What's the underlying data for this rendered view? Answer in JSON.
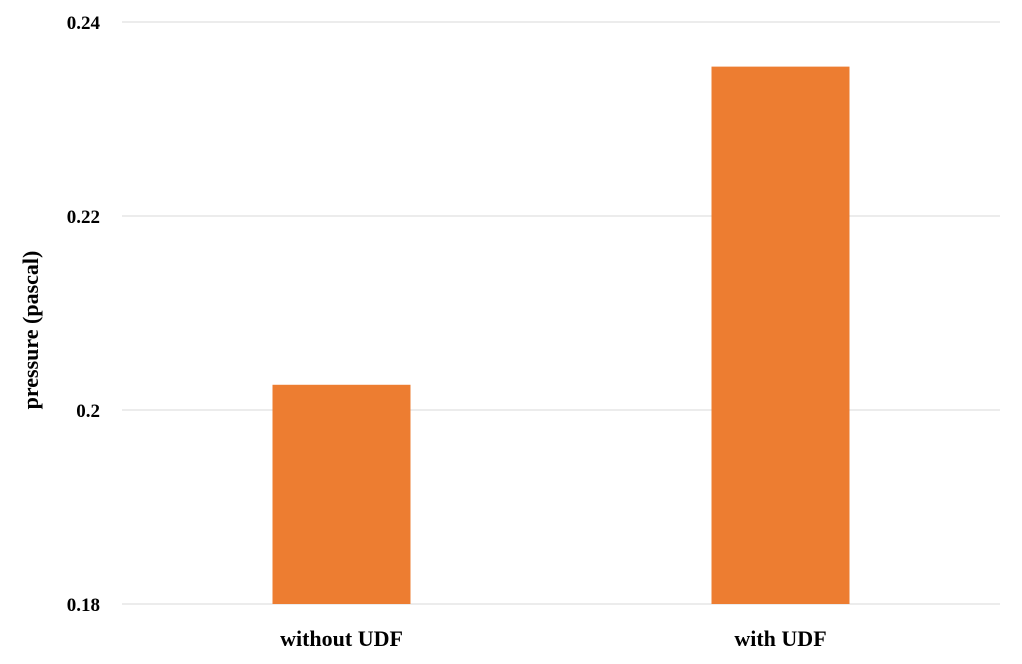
{
  "chart_data": {
    "type": "bar",
    "title": "",
    "xlabel": "",
    "ylabel": "pressure (pascal)",
    "categories": [
      "without UDF",
      "with UDF"
    ],
    "values": [
      0.2026,
      0.2354
    ],
    "ylim": [
      0.18,
      0.24
    ],
    "yticks": [
      0.18,
      0.2,
      0.22,
      0.24
    ],
    "ytick_labels": [
      "0.18",
      "0.2",
      "0.22",
      "0.24"
    ],
    "grid": true,
    "legend": "none",
    "bar_color": "#ed7d31",
    "gridline_color": "#d9d9d9"
  }
}
